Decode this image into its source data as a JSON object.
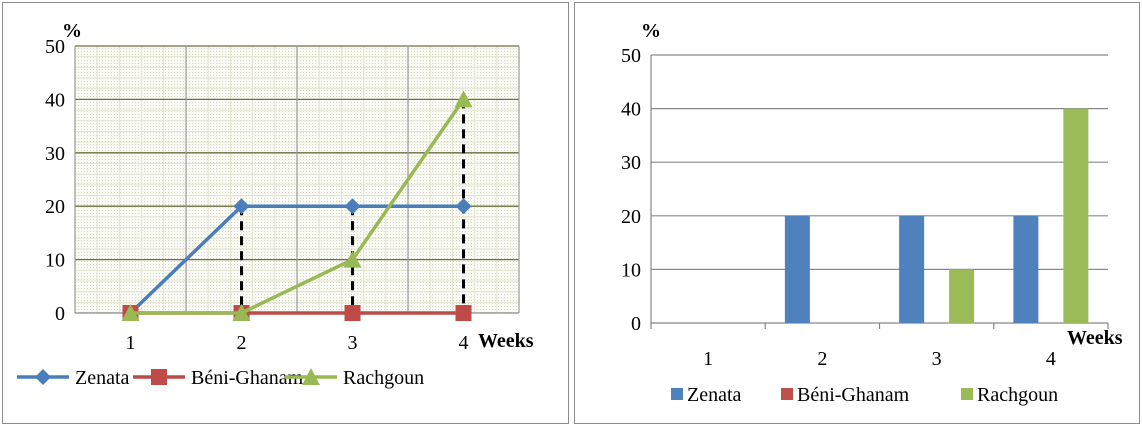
{
  "chart_data": [
    {
      "type": "line",
      "title": "",
      "xlabel": "Weeks",
      "ylabel": "%",
      "categories": [
        "1",
        "2",
        "3",
        "4"
      ],
      "ylim": [
        0,
        50
      ],
      "yticks": [
        "0",
        "10",
        "20",
        "30",
        "40",
        "50"
      ],
      "grid": "major and minor gridlines on a patterned plot area",
      "drop_lines": true,
      "legend_position": "bottom",
      "series": [
        {
          "name": "Zenata",
          "values": [
            0,
            20,
            20,
            20
          ],
          "color": "#4a7ebb",
          "marker": "diamond"
        },
        {
          "name": "Béni-Ghanam",
          "values": [
            0,
            0,
            0,
            0
          ],
          "color": "#be4b48",
          "marker": "square"
        },
        {
          "name": "Rachgoun",
          "values": [
            0,
            0,
            10,
            40
          ],
          "color": "#98b954",
          "marker": "triangle"
        }
      ]
    },
    {
      "type": "bar",
      "title": "",
      "xlabel": "Weeks",
      "ylabel": "%",
      "categories": [
        "1",
        "2",
        "3",
        "4"
      ],
      "ylim": [
        0,
        50
      ],
      "yticks": [
        "0",
        "10",
        "20",
        "30",
        "40",
        "50"
      ],
      "grid": "major horizontal gridlines",
      "legend_position": "bottom",
      "series": [
        {
          "name": "Zenata",
          "values": [
            0,
            20,
            20,
            20
          ],
          "color": "#4f81bd"
        },
        {
          "name": "Béni-Ghanam",
          "values": [
            0,
            0,
            0,
            0
          ],
          "color": "#c0504d"
        },
        {
          "name": "Rachgoun",
          "values": [
            0,
            0,
            10,
            40
          ],
          "color": "#9bbb59"
        }
      ]
    }
  ]
}
